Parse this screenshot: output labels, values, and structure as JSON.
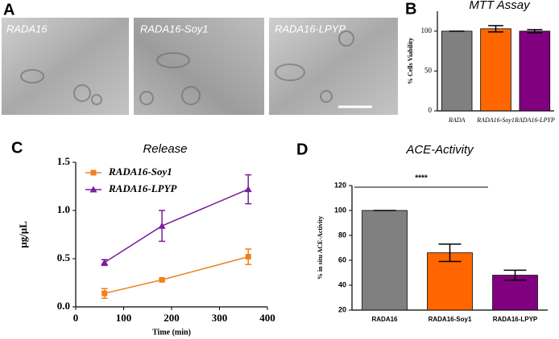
{
  "image_panel": {
    "panel_label": "A",
    "labels": [
      "RADA16",
      "RADA16-Soy1",
      "RADA16-LPYP"
    ]
  },
  "chart_data": [
    {
      "type": "bar",
      "panel_label": "B",
      "title": "MTT Assay",
      "y_label": "% Cells Viability",
      "categories": [
        "RADA",
        "RADA16-Soy1",
        "RADA16-LPYP"
      ],
      "values": [
        100,
        103,
        100
      ],
      "errors": [
        0,
        4,
        2
      ],
      "colors": [
        "#808080",
        "#ff6600",
        "#800080"
      ],
      "ylim": [
        0,
        125
      ],
      "yticks": [
        0,
        50,
        100
      ]
    },
    {
      "type": "line",
      "panel_label": "C",
      "title": "Release",
      "x_label": "Time (min)",
      "y_label": "μg/μL",
      "x": [
        60,
        180,
        360
      ],
      "series": [
        {
          "name": "RADA16-Soy1",
          "color": "#f08020",
          "marker": "square",
          "values": [
            0.14,
            0.28,
            0.52
          ],
          "errors": [
            0.05,
            0.01,
            0.08
          ]
        },
        {
          "name": "RADA16-LPYP",
          "color": "#7a1f9a",
          "marker": "triangle",
          "values": [
            0.46,
            0.84,
            1.22
          ],
          "errors": [
            0.03,
            0.16,
            0.15
          ]
        }
      ],
      "xlim": [
        0,
        400
      ],
      "xticks": [
        0,
        100,
        200,
        300,
        400
      ],
      "ylim": [
        0,
        1.5
      ],
      "yticks": [
        {
          "value": 0,
          "label": "0.0"
        },
        0.5,
        {
          "value": 1,
          "label": "1.0"
        },
        1.5
      ],
      "legend": "upper left"
    },
    {
      "type": "bar",
      "panel_label": "D",
      "title": "ACE-Activity",
      "y_label": "% in situ ACE-Activity",
      "categories": [
        "RADA16",
        "RADA16-Soy1",
        "RADA16-LPYP"
      ],
      "values": [
        100,
        66,
        48
      ],
      "errors": [
        0,
        7,
        4
      ],
      "colors": [
        "#808080",
        "#ff6600",
        "#800080"
      ],
      "ylim": [
        20,
        120
      ],
      "yticks": [
        20,
        40,
        60,
        80,
        100,
        120
      ],
      "annotation": "****"
    }
  ]
}
